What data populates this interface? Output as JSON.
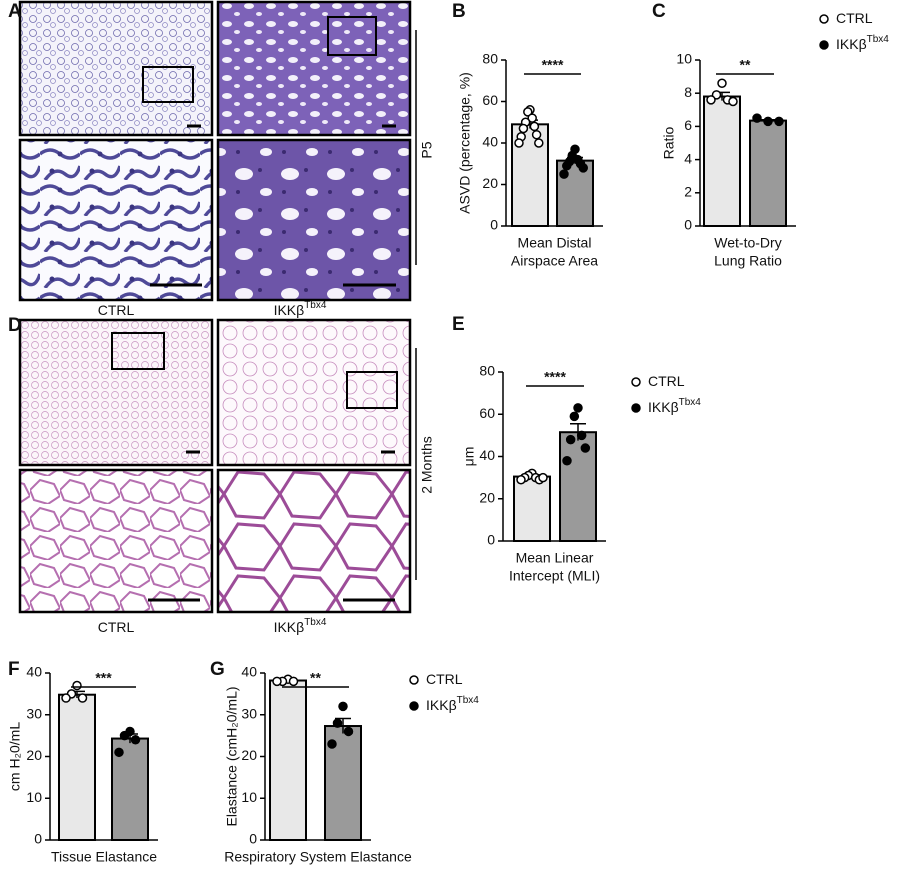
{
  "micrographs": [
    {
      "panel": "A",
      "labels": [
        {
          "text": "CTRL"
        },
        {
          "text": "IKKβ",
          "sup": "Tbx4"
        }
      ],
      "side_label": "P5"
    },
    {
      "panel": "D",
      "labels": [
        {
          "text": "CTRL"
        },
        {
          "text": "IKKβ",
          "sup": "Tbx4"
        }
      ],
      "side_label": "2 Months"
    }
  ],
  "chart_data": [
    {
      "type": "bar",
      "panel": "B",
      "ylabel": "ASVD (percentage, %)",
      "xlabel": [
        "Mean Distal",
        "Airspace Area"
      ],
      "significance": "****",
      "ylim": [
        0,
        80
      ],
      "yticks": [
        0,
        20,
        40,
        60,
        80
      ],
      "legend": false,
      "series": [
        {
          "name": "CTRL",
          "color": "#e8e8e8",
          "marker": "open",
          "value": 49,
          "error": 2,
          "points": [
            56,
            55,
            52,
            50,
            48,
            47,
            44,
            43,
            40,
            40
          ]
        },
        {
          "name": "IKKβ",
          "name_sup": "Tbx4",
          "color": "#9a9a9a",
          "marker": "filled",
          "value": 31.5,
          "error": 1.5,
          "points": [
            37,
            34,
            32,
            31,
            30,
            29,
            28,
            25
          ]
        }
      ]
    },
    {
      "type": "bar",
      "panel": "C",
      "ylabel": "Ratio",
      "xlabel": [
        "Wet-to-Dry",
        "Lung Ratio"
      ],
      "significance": "**",
      "ylim": [
        0,
        10
      ],
      "yticks": [
        0,
        2,
        4,
        6,
        8,
        10
      ],
      "legend": true,
      "series": [
        {
          "name": "CTRL",
          "color": "#e8e8e8",
          "marker": "open",
          "value": 7.8,
          "error": 0.25,
          "points": [
            8.6,
            7.9,
            7.6,
            7.6,
            7.5
          ]
        },
        {
          "name": "IKKβ",
          "name_sup": "Tbx4",
          "color": "#9a9a9a",
          "marker": "filled",
          "value": 6.35,
          "error": 0.05,
          "points": [
            6.3,
            6.5,
            6.3
          ]
        }
      ]
    },
    {
      "type": "bar",
      "panel": "E",
      "ylabel": "μm",
      "xlabel": [
        "Mean Linear",
        "Intercept (MLI)"
      ],
      "significance": "****",
      "ylim": [
        0,
        80
      ],
      "yticks": [
        0,
        20,
        40,
        60,
        80
      ],
      "legend": true,
      "series": [
        {
          "name": "CTRL",
          "color": "#e8e8e8",
          "marker": "open",
          "value": 30.5,
          "error": 0.8,
          "points": [
            32,
            31,
            30,
            30,
            29,
            29,
            30
          ]
        },
        {
          "name": "IKKβ",
          "name_sup": "Tbx4",
          "color": "#9a9a9a",
          "marker": "filled",
          "value": 51.5,
          "error": 4,
          "points": [
            63,
            59,
            50,
            48,
            44,
            38
          ]
        }
      ]
    },
    {
      "type": "bar",
      "panel": "F",
      "ylabel": "cm H₂0/mL",
      "xlabel": [
        "Tissue Elastance"
      ],
      "significance": "***",
      "ylim": [
        0,
        40
      ],
      "yticks": [
        0,
        10,
        20,
        30,
        40
      ],
      "legend": false,
      "series": [
        {
          "name": "CTRL",
          "color": "#e8e8e8",
          "marker": "open",
          "value": 34.8,
          "error": 0.8,
          "points": [
            37,
            35,
            34,
            34
          ]
        },
        {
          "name": "IKKβ",
          "name_sup": "Tbx4",
          "color": "#9a9a9a",
          "marker": "filled",
          "value": 24.3,
          "error": 1.1,
          "points": [
            26,
            25,
            24,
            21
          ]
        }
      ]
    },
    {
      "type": "bar",
      "panel": "G",
      "ylabel": "Elastance (cmH₂0/mL)",
      "xlabel": [
        "Respiratory System Elastance"
      ],
      "significance": "**",
      "ylim": [
        0,
        40
      ],
      "yticks": [
        0,
        10,
        20,
        30,
        40
      ],
      "legend": true,
      "series": [
        {
          "name": "CTRL",
          "color": "#e8e8e8",
          "marker": "open",
          "value": 38.2,
          "error": 0.3,
          "points": [
            38.5,
            38,
            38,
            38
          ]
        },
        {
          "name": "IKKβ",
          "name_sup": "Tbx4",
          "color": "#9a9a9a",
          "marker": "filled",
          "value": 27.3,
          "error": 1.8,
          "points": [
            32,
            28,
            26,
            23
          ]
        }
      ]
    }
  ]
}
